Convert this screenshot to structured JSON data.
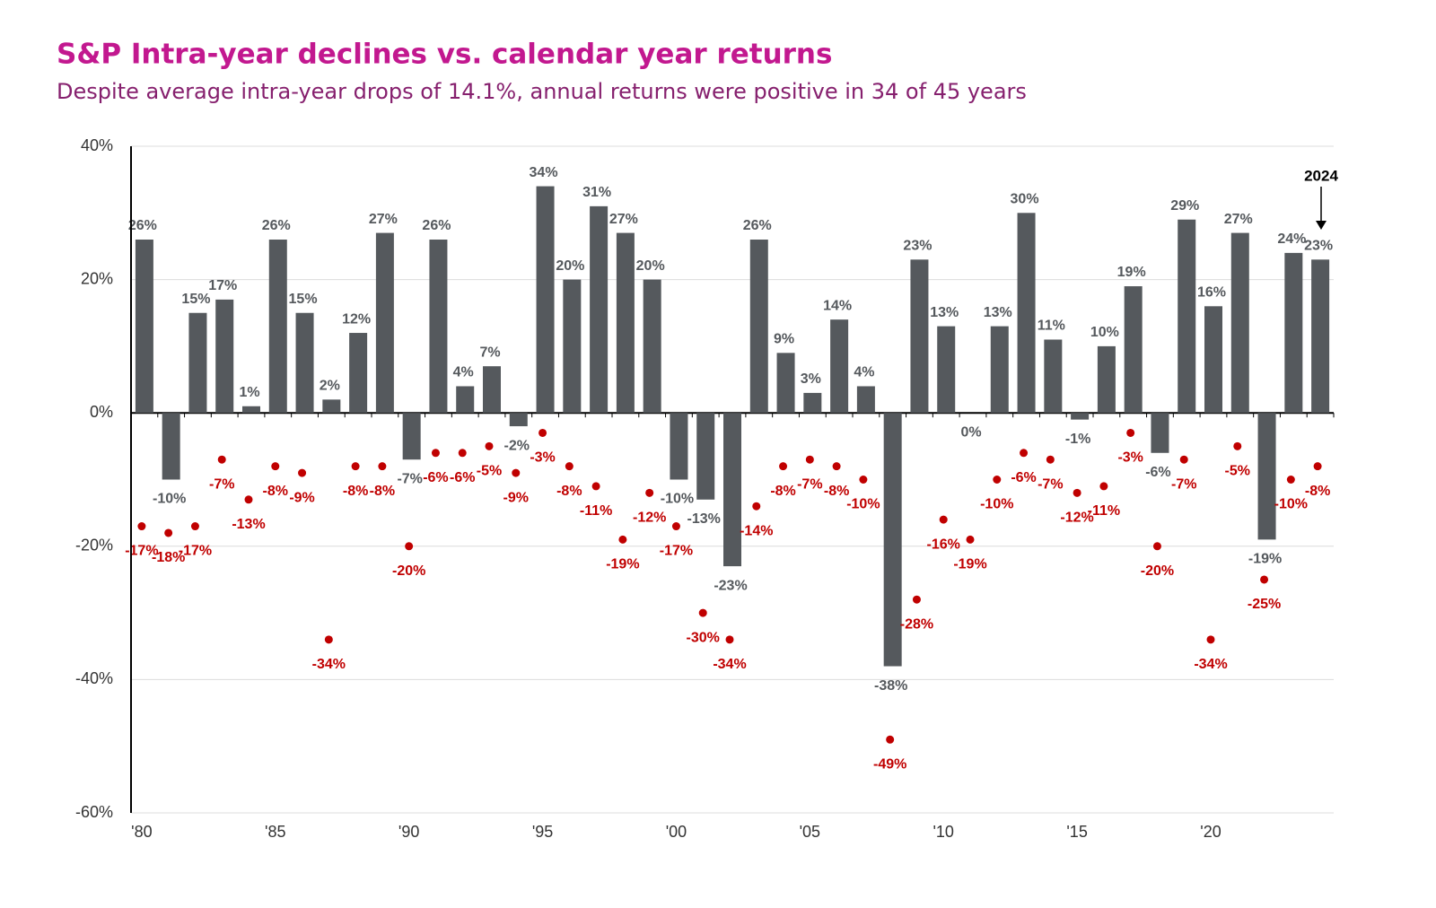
{
  "chart_data": {
    "type": "bar",
    "title": "S&P Intra-year declines vs. calendar year returns",
    "subtitle": "Despite average intra-year drops of 14.1%, annual returns were positive in 34 of 45 years",
    "categories": [
      "'80",
      null,
      null,
      null,
      null,
      "'85",
      null,
      null,
      null,
      null,
      "'90",
      null,
      null,
      null,
      null,
      "'95",
      null,
      null,
      null,
      null,
      "'00",
      null,
      null,
      null,
      null,
      "'05",
      null,
      null,
      null,
      null,
      "'10",
      null,
      null,
      null,
      null,
      "'15",
      null,
      null,
      null,
      null,
      "'20",
      null,
      null,
      null,
      null
    ],
    "annotation": "2024",
    "ylim": [
      -60,
      40
    ],
    "yticks": [
      {
        "value": -60,
        "label": "-60%"
      },
      {
        "value": -40,
        "label": "-40%"
      },
      {
        "value": -20,
        "label": "-20%"
      },
      {
        "value": 0,
        "label": "0%"
      },
      {
        "value": 20,
        "label": "20%"
      },
      {
        "value": 40,
        "label": "40%"
      }
    ],
    "grid": true,
    "series": [
      {
        "type": "bar",
        "color": "#55595d",
        "values": [
          26,
          -10,
          15,
          17,
          1,
          26,
          15,
          2,
          12,
          27,
          -7,
          26,
          4,
          7,
          -2,
          34,
          20,
          31,
          27,
          20,
          -10,
          -13,
          -23,
          26,
          9,
          3,
          14,
          4,
          -38,
          23,
          13,
          0,
          13,
          30,
          11,
          -1,
          10,
          19,
          -6,
          29,
          16,
          27,
          -19,
          24,
          23
        ],
        "value_labels": [
          "26%",
          "-10%",
          "15%",
          "17%",
          "1%",
          "26%",
          "15%",
          "2%",
          "12%",
          "27%",
          "-7%",
          "26%",
          "4%",
          "7%",
          "-2%",
          "34%",
          "20%",
          "31%",
          "27%",
          "20%",
          "-10%",
          "-13%",
          "-23%",
          "26%",
          "9%",
          "3%",
          "14%",
          "4%",
          "-38%",
          "23%",
          "13%",
          "0%",
          "13%",
          "30%",
          "11%",
          "-1%",
          "10%",
          "19%",
          "-6%",
          "29%",
          "16%",
          "27%",
          "-19%",
          "24%",
          "23%"
        ]
      },
      {
        "type": "scatter",
        "color": "#c00000",
        "values": [
          -17,
          -18,
          -17,
          -7,
          -13,
          -8,
          -9,
          -34,
          -8,
          -8,
          -20,
          -6,
          -6,
          -5,
          -9,
          -3,
          -8,
          -11,
          -19,
          -12,
          -17,
          -30,
          -34,
          -14,
          -8,
          -7,
          -8,
          -10,
          -49,
          -28,
          -16,
          -19,
          -10,
          -6,
          -7,
          -12,
          -11,
          -3,
          -20,
          -7,
          -34,
          -5,
          -25,
          -10,
          -8
        ],
        "value_labels": [
          "-17%",
          "-18%",
          "-17%",
          "-7%",
          "-13%",
          "-8%",
          "-9%",
          "-34%",
          "-8%",
          "-8%",
          "-20%",
          "-6%",
          "-6%",
          "-5%",
          "-9%",
          "-3%",
          "-8%",
          "-11%",
          "-19%",
          "-12%",
          "-17%",
          "-30%",
          "-34%",
          "-14%",
          "-8%",
          "-7%",
          "-8%",
          "-10%",
          "-49%",
          "-28%",
          "-16%",
          "-19%",
          "-10%",
          "-6%",
          "-7%",
          "-12%",
          "-11%",
          "-3%",
          "-20%",
          "-7%",
          "-34%",
          "-5%",
          "-25%",
          "-10%",
          "-8%"
        ]
      }
    ]
  }
}
